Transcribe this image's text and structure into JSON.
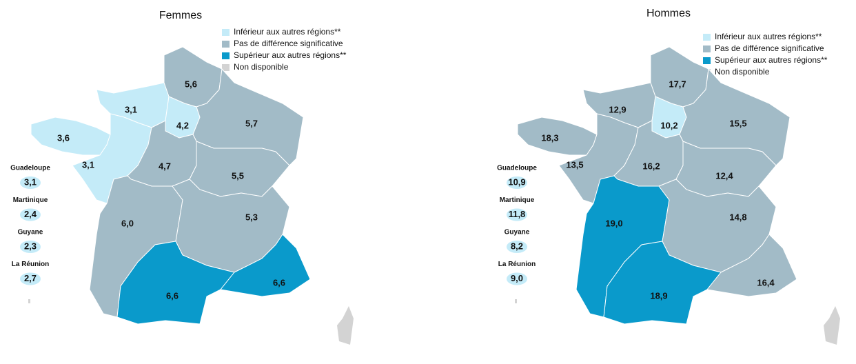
{
  "maps": [
    {
      "title": "Femmes",
      "legend": [
        {
          "text": "Inférieur aux autres régions**",
          "color": "#c4ebf8"
        },
        {
          "text": "Pas de différence significative",
          "color": "#a2bbc7"
        },
        {
          "text": "Supérieur aux autres régions**",
          "color": "#0a9acb"
        },
        {
          "text": "Non disponible",
          "color": "#d3d3d3"
        }
      ],
      "regions": [
        {
          "label": "5,6",
          "color": "#a2bbc7"
        },
        {
          "label": "3,1",
          "color": "#c4ebf8"
        },
        {
          "label": "4,2",
          "color": "#c4ebf8"
        },
        {
          "label": "5,7",
          "color": "#a2bbc7"
        },
        {
          "label": "3,6",
          "color": "#c4ebf8"
        },
        {
          "label": "3,1",
          "color": "#c4ebf8"
        },
        {
          "label": "4,7",
          "color": "#a2bbc7"
        },
        {
          "label": "5,5",
          "color": "#a2bbc7"
        },
        {
          "label": "6,0",
          "color": "#a2bbc7"
        },
        {
          "label": "5,3",
          "color": "#a2bbc7"
        },
        {
          "label": "6,6",
          "color": "#0a9acb"
        },
        {
          "label": "6,6",
          "color": "#0a9acb"
        }
      ],
      "overseas": [
        {
          "name": "Guadeloupe",
          "label": "3,1",
          "color": "#c4ebf8"
        },
        {
          "name": "Martinique",
          "label": "2,4",
          "color": "#c4ebf8"
        },
        {
          "name": "Guyane",
          "label": "2,3",
          "color": "#c4ebf8"
        },
        {
          "name": "La Réunion",
          "label": "2,7",
          "color": "#c4ebf8"
        }
      ]
    },
    {
      "title": "Hommes",
      "legend": [
        {
          "text": "Inférieur aux autres régions**",
          "color": "#c4ebf8"
        },
        {
          "text": "Pas de différence significative",
          "color": "#a2bbc7"
        },
        {
          "text": "Supérieur aux autres régions**",
          "color": "#0a9acb"
        },
        {
          "text": "Non disponible",
          "color": "#d3d3d3"
        }
      ],
      "regions": [
        {
          "label": "17,7",
          "color": "#a2bbc7"
        },
        {
          "label": "12,9",
          "color": "#a2bbc7"
        },
        {
          "label": "10,2",
          "color": "#c4ebf8"
        },
        {
          "label": "15,5",
          "color": "#a2bbc7"
        },
        {
          "label": "18,3",
          "color": "#a2bbc7"
        },
        {
          "label": "13,5",
          "color": "#a2bbc7"
        },
        {
          "label": "16,2",
          "color": "#a2bbc7"
        },
        {
          "label": "12,4",
          "color": "#a2bbc7"
        },
        {
          "label": "19,0",
          "color": "#0a9acb"
        },
        {
          "label": "14,8",
          "color": "#a2bbc7"
        },
        {
          "label": "18,9",
          "color": "#0a9acb"
        },
        {
          "label": "16,4",
          "color": "#a2bbc7"
        }
      ],
      "overseas": [
        {
          "name": "Guadeloupe",
          "label": "10,9",
          "color": "#c4ebf8"
        },
        {
          "name": "Martinique",
          "label": "11,8",
          "color": "#c4ebf8"
        },
        {
          "name": "Guyane",
          "label": "8,2",
          "color": "#c4ebf8"
        },
        {
          "name": "La Réunion",
          "label": "9,0",
          "color": "#c4ebf8"
        }
      ]
    }
  ]
}
